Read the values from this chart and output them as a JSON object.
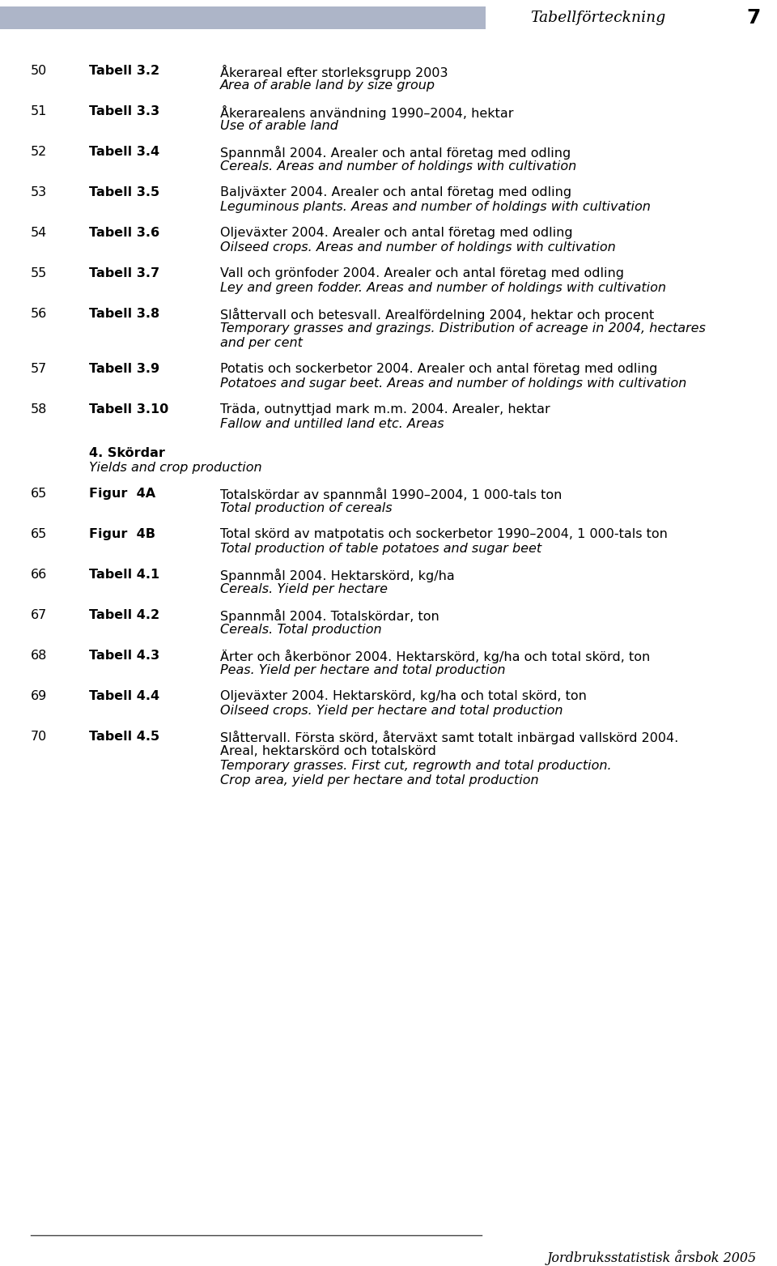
{
  "page_width": 9.6,
  "page_height": 15.63,
  "dpi": 100,
  "bg_color": "#ffffff",
  "header_bar_color": "#adb5c8",
  "header_title": "Tabellförteckning",
  "header_page": "7",
  "footer_line_color": "#444444",
  "footer_text": "Jordbruksstatistisk årsbok 2005",
  "section_header_bold": "4. Skördar",
  "section_header_italic": "Yields and crop production",
  "entries": [
    {
      "page": "50",
      "ref": "Tabell 3.2",
      "lines": [
        {
          "text": "Åkerareal efter storleksgrupp 2003",
          "italic": false
        },
        {
          "text": "Area of arable land by size group",
          "italic": true
        }
      ]
    },
    {
      "page": "51",
      "ref": "Tabell 3.3",
      "lines": [
        {
          "text": "Åkerarealens användning 1990–2004, hektar",
          "italic": false
        },
        {
          "text": "Use of arable land",
          "italic": true
        }
      ]
    },
    {
      "page": "52",
      "ref": "Tabell 3.4",
      "lines": [
        {
          "text": "Spannmål 2004. Arealer och antal företag med odling",
          "italic": false
        },
        {
          "text": "Cereals. Areas and number of holdings with cultivation",
          "italic": true
        }
      ]
    },
    {
      "page": "53",
      "ref": "Tabell 3.5",
      "lines": [
        {
          "text": "Baljväxter 2004. Arealer och antal företag med odling",
          "italic": false
        },
        {
          "text": "Leguminous plants. Areas and number of holdings with cultivation",
          "italic": true
        }
      ]
    },
    {
      "page": "54",
      "ref": "Tabell 3.6",
      "lines": [
        {
          "text": "Oljeväxter 2004. Arealer och antal företag med odling",
          "italic": false
        },
        {
          "text": "Oilseed crops. Areas and number of holdings with cultivation",
          "italic": true
        }
      ]
    },
    {
      "page": "55",
      "ref": "Tabell 3.7",
      "lines": [
        {
          "text": "Vall och grönfoder 2004. Arealer och antal företag med odling",
          "italic": false
        },
        {
          "text": "Ley and green fodder. Areas and number of holdings with cultivation",
          "italic": true
        }
      ]
    },
    {
      "page": "56",
      "ref": "Tabell 3.8",
      "lines": [
        {
          "text": "Slåttervall och betesvall. Arealfördelning 2004, hektar och procent",
          "italic": false
        },
        {
          "text": "Temporary grasses and grazings. Distribution of acreage in 2004, hectares",
          "italic": true
        },
        {
          "text": "and per cent",
          "italic": true
        }
      ]
    },
    {
      "page": "57",
      "ref": "Tabell 3.9",
      "lines": [
        {
          "text": "Potatis och sockerbetor 2004. Arealer och antal företag med odling",
          "italic": false
        },
        {
          "text": "Potatoes and sugar beet. Areas and number of holdings with cultivation",
          "italic": true
        }
      ]
    },
    {
      "page": "58",
      "ref": "Tabell 3.10",
      "lines": [
        {
          "text": "Träda, outnyttjad mark m.m. 2004. Arealer, hektar",
          "italic": false
        },
        {
          "text": "Fallow and untilled land etc. Areas",
          "italic": true
        }
      ]
    }
  ],
  "entries2": [
    {
      "page": "65",
      "ref": "Figur  4A",
      "lines": [
        {
          "text": "Totalskördar av spannmål 1990–2004, 1 000-tals ton",
          "italic": false
        },
        {
          "text": "Total production of cereals",
          "italic": true
        }
      ]
    },
    {
      "page": "65",
      "ref": "Figur  4B",
      "lines": [
        {
          "text": "Total skörd av matpotatis och sockerbetor 1990–2004, 1 000-tals ton",
          "italic": false
        },
        {
          "text": "Total production of table potatoes and sugar beet",
          "italic": true
        }
      ]
    },
    {
      "page": "66",
      "ref": "Tabell 4.1",
      "lines": [
        {
          "text": "Spannmål 2004. Hektarskörd, kg/ha",
          "italic": false
        },
        {
          "text": "Cereals. Yield per hectare",
          "italic": true
        }
      ]
    },
    {
      "page": "67",
      "ref": "Tabell 4.2",
      "lines": [
        {
          "text": "Spannmål 2004. Totalskördar, ton",
          "italic": false
        },
        {
          "text": "Cereals. Total production",
          "italic": true
        }
      ]
    },
    {
      "page": "68",
      "ref": "Tabell 4.3",
      "lines": [
        {
          "text": "Ärter och åkerbönor 2004. Hektarskörd, kg/ha och total skörd, ton",
          "italic": false
        },
        {
          "text": "Peas. Yield per hectare and total production",
          "italic": true
        }
      ]
    },
    {
      "page": "69",
      "ref": "Tabell 4.4",
      "lines": [
        {
          "text": "Oljeväxter 2004. Hektarskörd, kg/ha och total skörd, ton",
          "italic": false
        },
        {
          "text": "Oilseed crops. Yield per hectare and total production",
          "italic": true
        }
      ]
    },
    {
      "page": "70",
      "ref": "Tabell 4.5",
      "lines": [
        {
          "text": "Slåttervall. Första skörd, återväxt samt totalt inbärgad vallskörd 2004.",
          "italic": false
        },
        {
          "text": "Areal, hektarskörd och totalskörd",
          "italic": false
        },
        {
          "text": "Temporary grasses. First cut, regrowth and total production.",
          "italic": true
        },
        {
          "text": "Crop area, yield per hectare and total production",
          "italic": true
        }
      ]
    }
  ]
}
